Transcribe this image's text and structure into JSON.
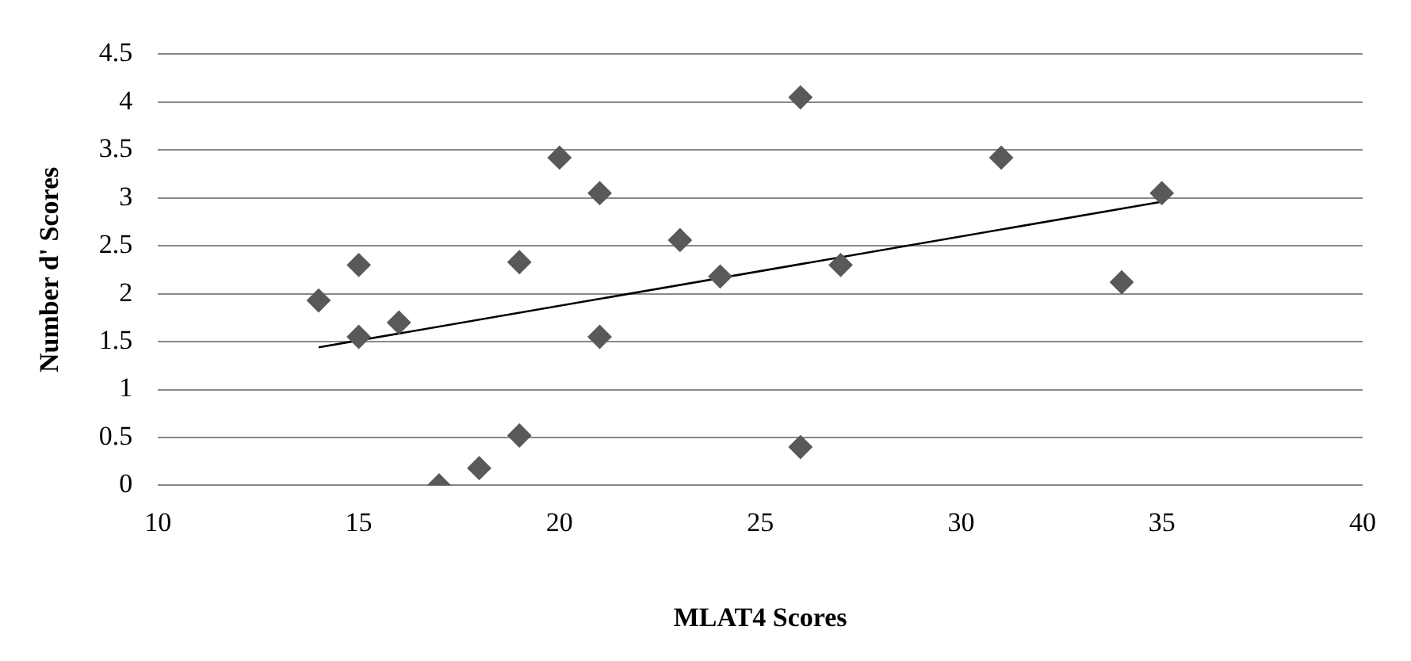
{
  "chart_data": {
    "type": "scatter",
    "xlabel": "MLAT4 Scores",
    "ylabel": "Number d' Scores",
    "xlim": [
      10,
      40
    ],
    "xticks": [
      10,
      15,
      20,
      25,
      30,
      35,
      40
    ],
    "ylim": [
      0,
      4.5
    ],
    "yticks": [
      0,
      0.5,
      1,
      1.5,
      2,
      2.5,
      3,
      3.5,
      4,
      4.5
    ],
    "grid": "y",
    "legend": false,
    "series": [
      {
        "type": "scatter",
        "marker": "diamond",
        "color": "#595959",
        "x": [
          14,
          15,
          15,
          16,
          17,
          18,
          19,
          19,
          20,
          21,
          21,
          23,
          24,
          26,
          26,
          27,
          31,
          34,
          35
        ],
        "values": [
          1.93,
          2.3,
          1.55,
          1.7,
          0,
          0.18,
          0.52,
          2.33,
          3.42,
          3.05,
          1.55,
          2.56,
          2.18,
          4.05,
          0.4,
          2.3,
          3.42,
          2.12,
          3.05
        ]
      },
      {
        "type": "line",
        "marker": "none",
        "color": "#000000",
        "x": [
          14,
          35
        ],
        "values": [
          1.44,
          2.96
        ]
      }
    ]
  }
}
